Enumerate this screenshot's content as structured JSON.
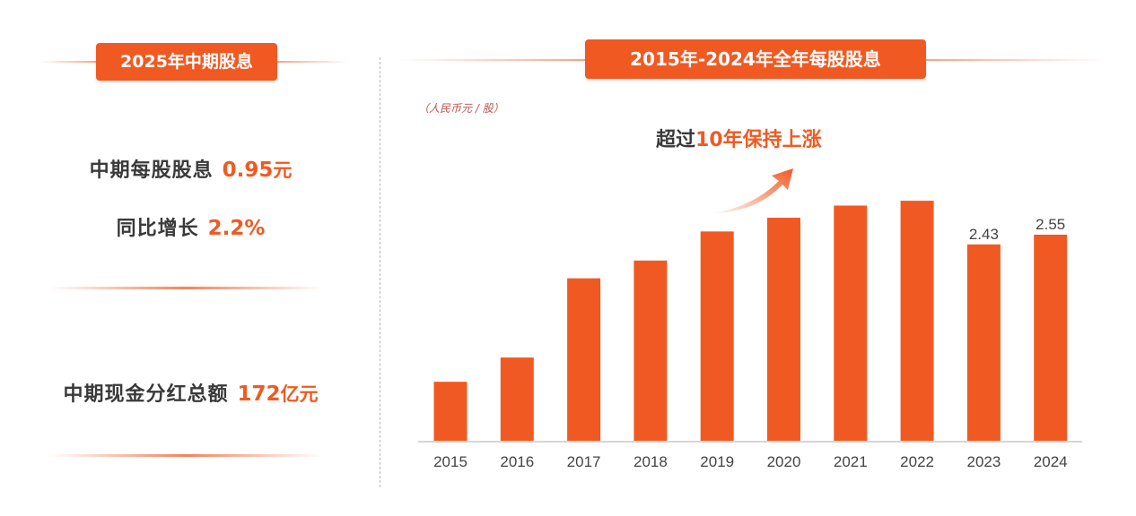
{
  "left_panel": {
    "badge": "2025年中期股息",
    "interim_dps_label": "中期每股股息",
    "interim_dps_value": "0.95",
    "interim_dps_unit": "元",
    "yoy_label": "同比增长",
    "yoy_value": "2.2%",
    "total_label": "中期现金分红总额",
    "total_value": "172",
    "total_unit": "亿元"
  },
  "right_panel": {
    "badge": "2015年-2024年全年每股股息",
    "unit_note": "（人民币元 / 股）",
    "growth_note_prefix": "超过",
    "growth_note_highlight": "10年保持上涨"
  },
  "colors": {
    "accent": "#f05a22",
    "text": "#3a3a3a"
  },
  "chart_data": {
    "type": "bar",
    "categories": [
      "2015",
      "2016",
      "2017",
      "2018",
      "2019",
      "2020",
      "2021",
      "2022",
      "2023",
      "2024"
    ],
    "values": [
      0.73,
      1.03,
      2.01,
      2.23,
      2.59,
      2.76,
      2.91,
      2.97,
      2.43,
      2.55
    ],
    "data_labels": [
      "",
      "",
      "",
      "",
      "",
      "",
      "",
      "",
      "2.43",
      "2.55"
    ],
    "axis_shown": "x",
    "grid": false
  }
}
